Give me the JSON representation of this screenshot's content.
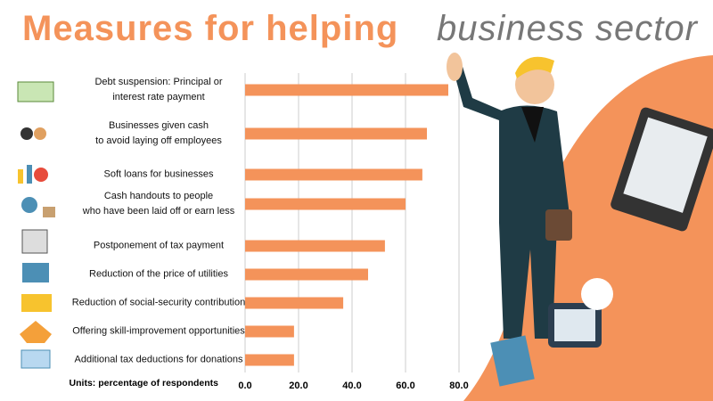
{
  "chart_data": {
    "type": "barh",
    "title": [
      "Measures for helping",
      "business sector"
    ],
    "categories": [
      "Debt suspension: Principal or\ninterest rate payment",
      "Businesses given cash\nto avoid laying off employees",
      "Soft loans for businesses",
      "Cash handouts to people\nwho have been laid off or earn less",
      "Postponement of tax payment",
      "Reduction of the price of utilities",
      "Reduction of social-security contribution",
      "Offering skill-improvement opportunities",
      "Additional tax deductions for donations"
    ],
    "values": [
      76,
      68,
      66.3,
      60,
      52.3,
      46,
      36.7,
      18.3,
      18.3
    ],
    "color": "#f4935a",
    "x_label": "Units: percentage of respondents",
    "xlim": [
      0,
      80
    ],
    "xticks": [
      {
        "value": 0,
        "label": "0.0"
      },
      {
        "value": 20,
        "label": "20.0"
      },
      {
        "value": 40,
        "label": "40.0"
      },
      {
        "value": 60,
        "label": "60.0"
      },
      {
        "value": 80,
        "label": "80.0"
      }
    ],
    "grid": true
  }
}
